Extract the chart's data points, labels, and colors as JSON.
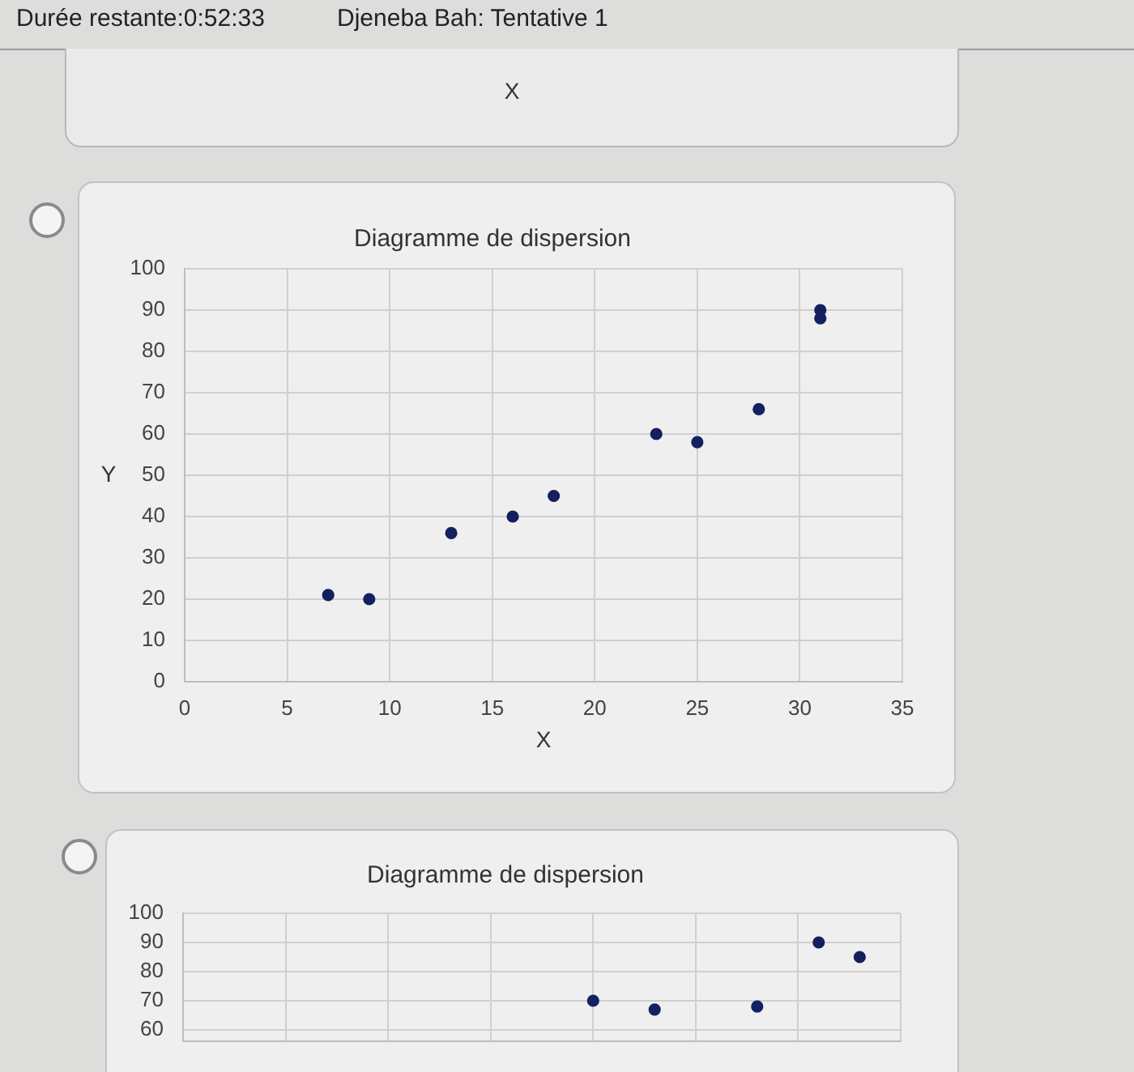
{
  "chart_data": [
    {
      "type": "other",
      "annotations": [
        "Durée restante:0:52:33",
        "Djeneba Bah: Tentative 1"
      ],
      "xlabel": "X"
    },
    {
      "type": "scatter",
      "title": "Diagramme de dispersion",
      "xlabel": "X",
      "ylabel": "Y",
      "x": [
        7,
        9,
        13,
        16,
        18,
        23,
        25,
        28,
        31,
        31
      ],
      "values": [
        21,
        20,
        36,
        40,
        45,
        60,
        58,
        66,
        90,
        88
      ],
      "color": "#142060",
      "xlim": [
        0,
        35
      ],
      "xticks": [
        0,
        5,
        10,
        15,
        20,
        25,
        30,
        35
      ],
      "ylim": [
        0,
        100
      ],
      "yticks": [
        0,
        10,
        20,
        30,
        40,
        50,
        60,
        70,
        80,
        90,
        100
      ],
      "grid": true,
      "marker": "circle"
    },
    {
      "type": "scatter",
      "title": "Diagramme de dispersion",
      "x": [
        20,
        23,
        28,
        31,
        33
      ],
      "values": [
        70,
        67,
        68,
        90,
        85
      ],
      "color": "#142060",
      "xlim": [
        0,
        35
      ],
      "xticks": [
        {
          "value": 0,
          "label": null
        },
        {
          "value": 5,
          "label": null
        },
        {
          "value": 10,
          "label": null
        },
        {
          "value": 15,
          "label": null
        },
        {
          "value": 20,
          "label": null
        },
        {
          "value": 25,
          "label": null
        },
        {
          "value": 30,
          "label": null
        },
        {
          "value": 35,
          "label": null
        }
      ],
      "ylim": [
        56,
        100
      ],
      "yticks": [
        60,
        70,
        80,
        90,
        100
      ],
      "grid": true,
      "tick_labels": "y",
      "marker": "circle"
    }
  ]
}
